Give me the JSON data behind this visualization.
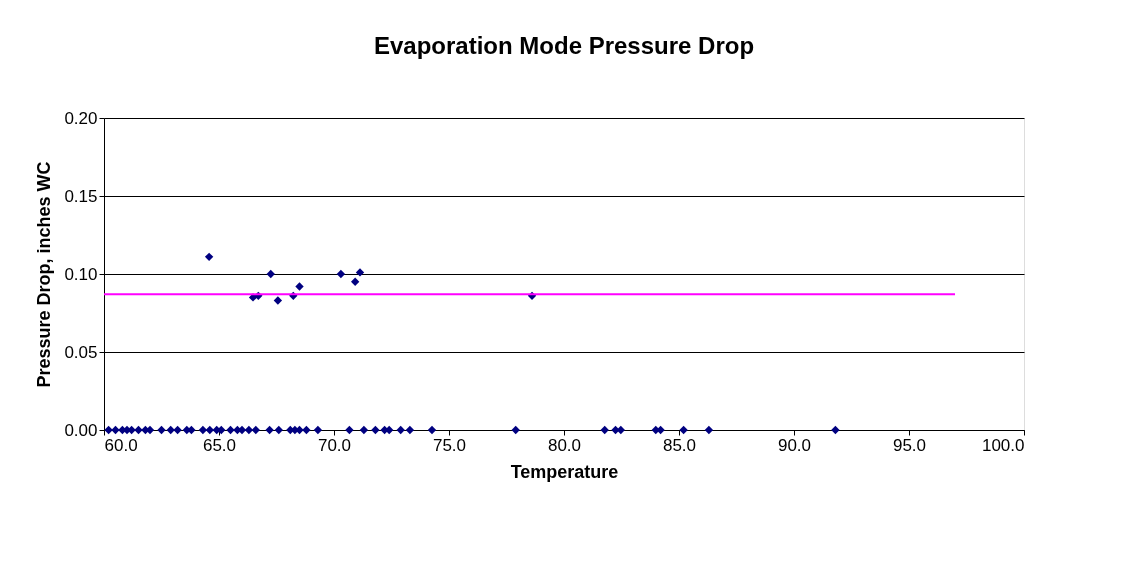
{
  "chart_data": {
    "type": "scatter",
    "title": "Evaporation Mode Pressure Drop",
    "xlabel": "Temperature",
    "ylabel": "Pressure Drop, inches WC",
    "series": [
      {
        "color": "#000080",
        "marker": "diamond",
        "x": [
          64.57,
          66.48,
          66.71,
          67.25,
          67.56,
          68.23,
          68.5,
          70.3,
          70.92,
          71.13,
          78.61,
          60.2,
          60.5,
          60.8,
          61.0,
          61.2,
          61.5,
          61.8,
          62.0,
          62.5,
          62.9,
          63.2,
          63.6,
          63.8,
          64.3,
          64.6,
          64.9,
          65.1,
          65.5,
          65.8,
          66.0,
          66.3,
          66.6,
          67.2,
          67.6,
          68.1,
          68.3,
          68.5,
          68.8,
          69.3,
          70.67,
          71.3,
          71.8,
          72.2,
          72.4,
          72.9,
          73.3,
          74.26,
          77.9,
          81.77,
          82.24,
          82.47,
          83.99,
          84.2,
          85.2,
          86.3,
          91.8
        ],
        "values": [
          0.111,
          0.085,
          0.086,
          0.1,
          0.083,
          0.086,
          0.092,
          0.1,
          0.095,
          0.101,
          0.086,
          0,
          0,
          0,
          0,
          0,
          0,
          0,
          0,
          0,
          0,
          0,
          0,
          0,
          0,
          0,
          0,
          0,
          0,
          0,
          0,
          0,
          0,
          0,
          0,
          0,
          0,
          0,
          0,
          0,
          0,
          0,
          0,
          0,
          0,
          0,
          0,
          0,
          0,
          0,
          0,
          0,
          0,
          0,
          0,
          0,
          0
        ]
      },
      {
        "type": "line",
        "color": "#ff00ff",
        "marker": "none",
        "x": [
          60,
          97
        ],
        "values": [
          0.087,
          0.087
        ]
      }
    ],
    "xlim": [
      60,
      100
    ],
    "xticks": [
      {
        "value": 60,
        "label": "60.0"
      },
      {
        "value": 65,
        "label": "65.0"
      },
      {
        "value": 70,
        "label": "70.0"
      },
      {
        "value": 75,
        "label": "75.0"
      },
      {
        "value": 80,
        "label": "80.0"
      },
      {
        "value": 85,
        "label": "85.0"
      },
      {
        "value": 90,
        "label": "90.0"
      },
      {
        "value": 95,
        "label": "95.0"
      },
      {
        "value": 100,
        "label": "100.0"
      }
    ],
    "ylim": [
      0,
      0.2
    ],
    "yticks": [
      {
        "value": 0,
        "label": "0.00"
      },
      {
        "value": 0.05,
        "label": "0.05"
      },
      {
        "value": 0.1,
        "label": "0.10"
      },
      {
        "value": 0.15,
        "label": "0.15"
      },
      {
        "value": 0.2,
        "label": "0.20"
      }
    ],
    "grid": "y"
  }
}
